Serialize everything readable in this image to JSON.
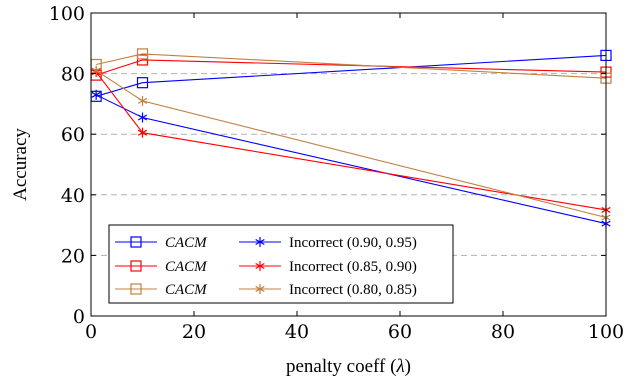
{
  "chart_data": {
    "type": "line",
    "title": "",
    "xlabel": "penalty coeff (λ)",
    "ylabel": "Accuracy",
    "xlim": [
      0,
      100
    ],
    "ylim": [
      0,
      100
    ],
    "xticks": [
      0,
      20,
      40,
      60,
      80,
      100
    ],
    "yticks": [
      0,
      20,
      40,
      60,
      80,
      100
    ],
    "grid": "horizontal dashed",
    "legend_position": "bottom-left",
    "series": [
      {
        "name": "CACM",
        "color": "#0000ff",
        "marker": "square",
        "x": [
          1,
          10,
          100
        ],
        "y": [
          72.5,
          77,
          86
        ]
      },
      {
        "name": "CACM",
        "color": "#ff0000",
        "marker": "square",
        "x": [
          1,
          10,
          100
        ],
        "y": [
          79.5,
          84.5,
          80.5
        ]
      },
      {
        "name": "CACM",
        "color": "#c08040",
        "marker": "square",
        "x": [
          1,
          10,
          100
        ],
        "y": [
          83,
          86.5,
          78.5
        ]
      },
      {
        "name": "Incorrect (0.90, 0.95)",
        "color": "#0000ff",
        "marker": "star",
        "x": [
          1,
          10,
          100
        ],
        "y": [
          73,
          65.5,
          30.5
        ]
      },
      {
        "name": "Incorrect (0.85, 0.90)",
        "color": "#ff0000",
        "marker": "star",
        "x": [
          1,
          10,
          100
        ],
        "y": [
          80.5,
          60.5,
          35
        ]
      },
      {
        "name": "Incorrect (0.80, 0.85)",
        "color": "#c08040",
        "marker": "star",
        "x": [
          1,
          10,
          100
        ],
        "y": [
          81,
          71,
          32.5
        ]
      }
    ]
  }
}
